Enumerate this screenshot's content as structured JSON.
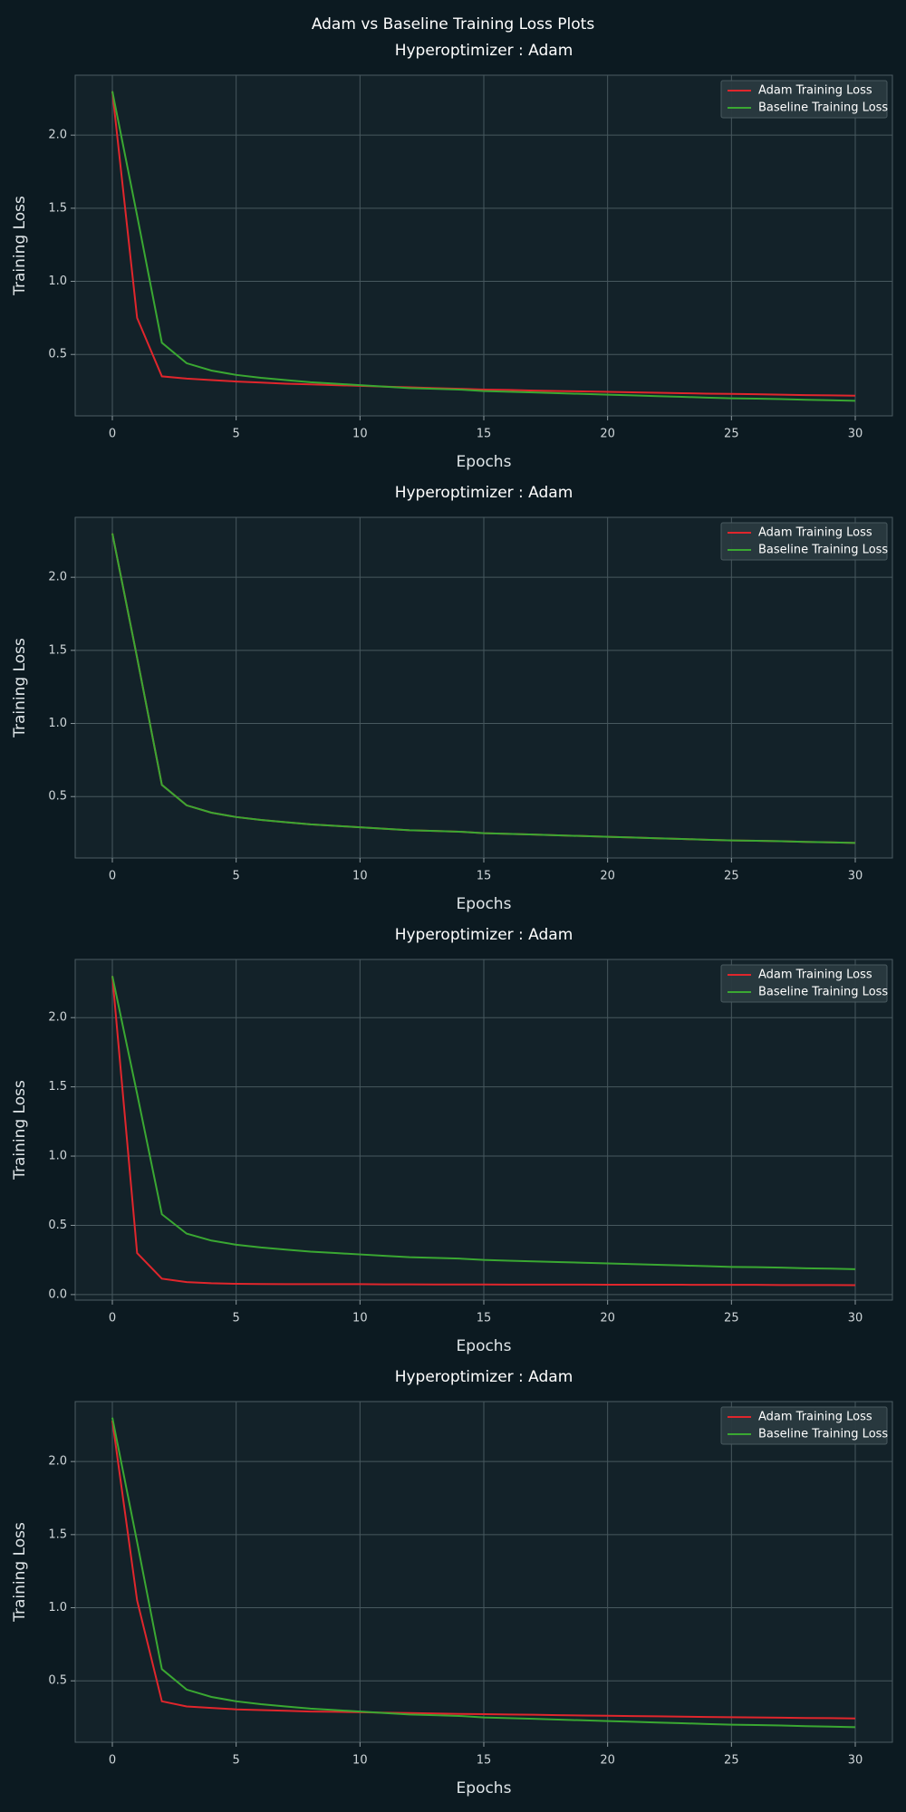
{
  "suptitle": "Adam vs Baseline Training Loss Plots",
  "chart_data": [
    {
      "type": "line",
      "title": "Hyperoptimizer : Adam",
      "xlabel": "Epochs",
      "ylabel": "Training Loss",
      "x": [
        0,
        1,
        2,
        3,
        4,
        5,
        6,
        7,
        8,
        9,
        10,
        11,
        12,
        13,
        14,
        15,
        16,
        17,
        18,
        19,
        20,
        21,
        22,
        23,
        24,
        25,
        26,
        27,
        28,
        29,
        30
      ],
      "series": [
        {
          "name": "Adam Training Loss",
          "color": "#e0262c",
          "values": [
            2.3,
            0.75,
            0.35,
            0.335,
            0.325,
            0.315,
            0.308,
            0.3,
            0.295,
            0.29,
            0.285,
            0.28,
            0.275,
            0.27,
            0.265,
            0.26,
            0.257,
            0.253,
            0.25,
            0.247,
            0.244,
            0.241,
            0.238,
            0.235,
            0.232,
            0.23,
            0.228,
            0.225,
            0.222,
            0.22,
            0.218
          ]
        },
        {
          "name": "Baseline Training Loss",
          "color": "#3aa832",
          "values": [
            2.3,
            1.45,
            0.58,
            0.44,
            0.39,
            0.36,
            0.34,
            0.325,
            0.31,
            0.3,
            0.29,
            0.28,
            0.27,
            0.265,
            0.26,
            0.25,
            0.245,
            0.24,
            0.235,
            0.23,
            0.225,
            0.22,
            0.215,
            0.21,
            0.205,
            0.2,
            0.198,
            0.195,
            0.19,
            0.187,
            0.183
          ]
        }
      ],
      "xlim": [
        -1.5,
        31.5
      ],
      "ylim": [
        0.08,
        2.41
      ],
      "xticks": [
        0,
        5,
        10,
        15,
        20,
        25,
        30
      ],
      "yticks": [
        0.5,
        {
          "value": 1,
          "label": "1.0"
        },
        1.5,
        {
          "value": 2,
          "label": "2.0"
        }
      ],
      "grid": true,
      "legend": "upper right"
    },
    {
      "type": "line",
      "title": "Hyperoptimizer : Adam",
      "xlabel": "Epochs",
      "ylabel": "Training Loss",
      "x": [
        0,
        1,
        2,
        3,
        4,
        5,
        6,
        7,
        8,
        9,
        10,
        11,
        12,
        13,
        14,
        15,
        16,
        17,
        18,
        19,
        20,
        21,
        22,
        23,
        24,
        25,
        26,
        27,
        28,
        29,
        30
      ],
      "series": [
        {
          "name": "Adam Training Loss",
          "color": "#e0262c",
          "values": [
            2.3,
            1.45,
            0.58,
            0.44,
            0.39,
            0.36,
            0.34,
            0.325,
            0.31,
            0.3,
            0.29,
            0.28,
            0.27,
            0.265,
            0.26,
            0.25,
            0.245,
            0.24,
            0.235,
            0.23,
            0.225,
            0.22,
            0.215,
            0.21,
            0.205,
            0.2,
            0.198,
            0.195,
            0.19,
            0.187,
            0.183
          ]
        },
        {
          "name": "Baseline Training Loss",
          "color": "#3aa832",
          "values": [
            2.3,
            1.45,
            0.58,
            0.44,
            0.39,
            0.36,
            0.34,
            0.325,
            0.31,
            0.3,
            0.29,
            0.28,
            0.27,
            0.265,
            0.26,
            0.25,
            0.245,
            0.24,
            0.235,
            0.23,
            0.225,
            0.22,
            0.215,
            0.21,
            0.205,
            0.2,
            0.198,
            0.195,
            0.19,
            0.187,
            0.183
          ]
        }
      ],
      "xlim": [
        -1.5,
        31.5
      ],
      "ylim": [
        0.08,
        2.41
      ],
      "xticks": [
        0,
        5,
        10,
        15,
        20,
        25,
        30
      ],
      "yticks": [
        0.5,
        {
          "value": 1,
          "label": "1.0"
        },
        1.5,
        {
          "value": 2,
          "label": "2.0"
        }
      ],
      "grid": true,
      "legend": "upper right"
    },
    {
      "type": "line",
      "title": "Hyperoptimizer : Adam",
      "xlabel": "Epochs",
      "ylabel": "Training Loss",
      "x": [
        0,
        1,
        2,
        3,
        4,
        5,
        6,
        7,
        8,
        9,
        10,
        11,
        12,
        13,
        14,
        15,
        16,
        17,
        18,
        19,
        20,
        21,
        22,
        23,
        24,
        25,
        26,
        27,
        28,
        29,
        30
      ],
      "series": [
        {
          "name": "Adam Training Loss",
          "color": "#e0262c",
          "values": [
            2.3,
            0.3,
            0.115,
            0.09,
            0.082,
            0.078,
            0.076,
            0.075,
            0.075,
            0.075,
            0.075,
            0.074,
            0.074,
            0.073,
            0.073,
            0.073,
            0.072,
            0.072,
            0.072,
            0.072,
            0.071,
            0.071,
            0.071,
            0.071,
            0.07,
            0.07,
            0.07,
            0.069,
            0.069,
            0.069,
            0.068
          ]
        },
        {
          "name": "Baseline Training Loss",
          "color": "#3aa832",
          "values": [
            2.3,
            1.45,
            0.58,
            0.44,
            0.39,
            0.36,
            0.34,
            0.325,
            0.31,
            0.3,
            0.29,
            0.28,
            0.27,
            0.265,
            0.26,
            0.25,
            0.245,
            0.24,
            0.235,
            0.23,
            0.225,
            0.22,
            0.215,
            0.21,
            0.205,
            0.2,
            0.198,
            0.195,
            0.19,
            0.187,
            0.183
          ]
        }
      ],
      "xlim": [
        -1.5,
        31.5
      ],
      "ylim": [
        -0.04,
        2.42
      ],
      "xticks": [
        0,
        5,
        10,
        15,
        20,
        25,
        30
      ],
      "yticks": [
        {
          "value": 0,
          "label": "0.0"
        },
        0.5,
        {
          "value": 1,
          "label": "1.0"
        },
        1.5,
        {
          "value": 2,
          "label": "2.0"
        }
      ],
      "grid": true,
      "legend": "upper right"
    },
    {
      "type": "line",
      "title": "Hyperoptimizer : Adam",
      "xlabel": "Epochs",
      "ylabel": "Training Loss",
      "x": [
        0,
        1,
        2,
        3,
        4,
        5,
        6,
        7,
        8,
        9,
        10,
        11,
        12,
        13,
        14,
        15,
        16,
        17,
        18,
        19,
        20,
        21,
        22,
        23,
        24,
        25,
        26,
        27,
        28,
        29,
        30
      ],
      "series": [
        {
          "name": "Adam Training Loss",
          "color": "#e0262c",
          "values": [
            2.28,
            1.05,
            0.36,
            0.325,
            0.315,
            0.305,
            0.3,
            0.295,
            0.29,
            0.288,
            0.285,
            0.282,
            0.28,
            0.277,
            0.274,
            0.272,
            0.27,
            0.268,
            0.265,
            0.263,
            0.261,
            0.259,
            0.257,
            0.255,
            0.253,
            0.251,
            0.25,
            0.248,
            0.246,
            0.245,
            0.243
          ]
        },
        {
          "name": "Baseline Training Loss",
          "color": "#3aa832",
          "values": [
            2.3,
            1.45,
            0.58,
            0.44,
            0.39,
            0.36,
            0.34,
            0.325,
            0.31,
            0.3,
            0.29,
            0.28,
            0.27,
            0.265,
            0.26,
            0.25,
            0.245,
            0.24,
            0.235,
            0.23,
            0.225,
            0.22,
            0.215,
            0.21,
            0.205,
            0.2,
            0.198,
            0.195,
            0.19,
            0.187,
            0.183
          ]
        }
      ],
      "xlim": [
        -1.5,
        31.5
      ],
      "ylim": [
        0.08,
        2.41
      ],
      "xticks": [
        0,
        5,
        10,
        15,
        20,
        25,
        30
      ],
      "yticks": [
        0.5,
        {
          "value": 1,
          "label": "1.0"
        },
        1.5,
        {
          "value": 2,
          "label": "2.0"
        }
      ],
      "grid": true,
      "legend": "upper right"
    }
  ]
}
